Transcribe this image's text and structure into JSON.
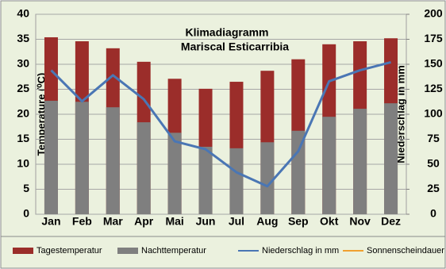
{
  "chart_data": {
    "type": "bar",
    "title": "Klimadiagramm",
    "subtitle": "Mariscal Esticarribia",
    "y_label": "Temperature (⁰C)",
    "y2_label": "Niederschlag in mm",
    "categories": [
      "Jan",
      "Feb",
      "Mar",
      "Apr",
      "Mai",
      "Jun",
      "Jul",
      "Aug",
      "Sep",
      "Okt",
      "Nov",
      "Dez"
    ],
    "series": [
      {
        "name": "Tagestemperatur",
        "type": "bar",
        "color": "#9b2d2a",
        "values": [
          35.4,
          34.6,
          33.2,
          30.5,
          27.1,
          25.1,
          26.5,
          28.7,
          31.0,
          34.0,
          34.6,
          35.2
        ]
      },
      {
        "name": "Nachttemperatur",
        "type": "bar",
        "color": "#7f7f7f",
        "values": [
          22.7,
          22.5,
          21.4,
          18.4,
          16.3,
          13.5,
          13.2,
          14.4,
          16.7,
          19.5,
          21.1,
          22.2
        ]
      },
      {
        "name": "Niederschlag in mm",
        "type": "line",
        "axis": "y2",
        "color": "#4a76b4",
        "values": [
          144,
          113,
          139,
          115,
          73,
          65,
          42,
          28,
          63,
          133,
          144,
          152
        ]
      },
      {
        "name": "Sonnenscheindauer",
        "type": "line",
        "axis": "y2",
        "color": "#f0a030",
        "values": [
          null,
          null,
          null,
          null,
          null,
          null,
          null,
          null,
          null,
          null,
          null,
          null
        ]
      }
    ],
    "ylim": [
      0,
      40
    ],
    "yticks": [
      0,
      5,
      10,
      15,
      20,
      25,
      30,
      35,
      40
    ],
    "y2lim": [
      0,
      200
    ],
    "y2ticks": [
      0,
      25,
      50,
      75,
      100,
      125,
      150,
      175,
      200
    ],
    "grid": true
  }
}
